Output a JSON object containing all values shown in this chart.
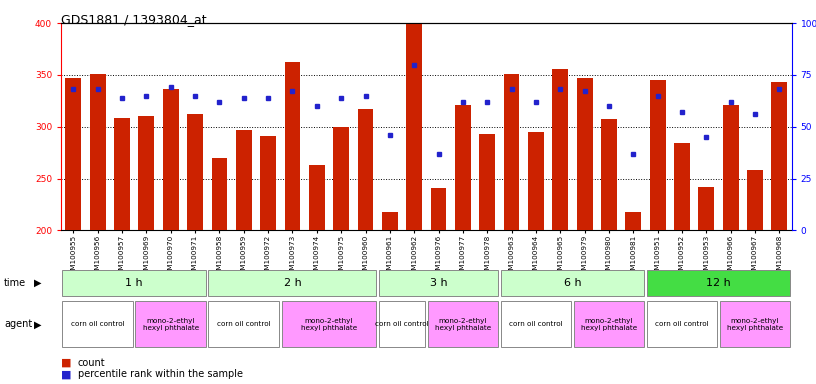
{
  "title": "GDS1881 / 1393804_at",
  "samples": [
    "GSM100955",
    "GSM100956",
    "GSM100957",
    "GSM100969",
    "GSM100970",
    "GSM100971",
    "GSM100958",
    "GSM100959",
    "GSM100972",
    "GSM100973",
    "GSM100974",
    "GSM100975",
    "GSM100960",
    "GSM100961",
    "GSM100962",
    "GSM100976",
    "GSM100977",
    "GSM100978",
    "GSM100963",
    "GSM100964",
    "GSM100965",
    "GSM100979",
    "GSM100980",
    "GSM100981",
    "GSM100951",
    "GSM100952",
    "GSM100953",
    "GSM100966",
    "GSM100967",
    "GSM100968"
  ],
  "counts": [
    347,
    351,
    308,
    310,
    336,
    312,
    270,
    297,
    291,
    362,
    263,
    300,
    317,
    218,
    400,
    241,
    321,
    293,
    351,
    295,
    356,
    347,
    307,
    218,
    345,
    284,
    242,
    321,
    258,
    343
  ],
  "percentiles": [
    68,
    68,
    64,
    65,
    69,
    65,
    62,
    64,
    64,
    67,
    60,
    64,
    65,
    46,
    80,
    37,
    62,
    62,
    68,
    62,
    68,
    67,
    60,
    37,
    65,
    57,
    45,
    62,
    56,
    68
  ],
  "time_groups": [
    {
      "label": "1 h",
      "start": 0,
      "end": 6
    },
    {
      "label": "2 h",
      "start": 6,
      "end": 13
    },
    {
      "label": "3 h",
      "start": 13,
      "end": 18
    },
    {
      "label": "6 h",
      "start": 18,
      "end": 24
    },
    {
      "label": "12 h",
      "start": 24,
      "end": 30
    }
  ],
  "time_colors": [
    "#ccffcc",
    "#ccffcc",
    "#ccffcc",
    "#ccffcc",
    "#44dd44"
  ],
  "agent_groups": [
    {
      "label": "corn oil control",
      "start": 0,
      "end": 3
    },
    {
      "label": "mono-2-ethyl\nhexyl phthalate",
      "start": 3,
      "end": 6
    },
    {
      "label": "corn oil control",
      "start": 6,
      "end": 9
    },
    {
      "label": "mono-2-ethyl\nhexyl phthalate",
      "start": 9,
      "end": 13
    },
    {
      "label": "corn oil control",
      "start": 13,
      "end": 15
    },
    {
      "label": "mono-2-ethyl\nhexyl phthalate",
      "start": 15,
      "end": 18
    },
    {
      "label": "corn oil control",
      "start": 18,
      "end": 21
    },
    {
      "label": "mono-2-ethyl\nhexyl phthalate",
      "start": 21,
      "end": 24
    },
    {
      "label": "corn oil control",
      "start": 24,
      "end": 27
    },
    {
      "label": "mono-2-ethyl\nhexyl phthalate",
      "start": 27,
      "end": 30
    }
  ],
  "agent_colors": [
    "#ffffff",
    "#ff99ff",
    "#ffffff",
    "#ff99ff",
    "#ffffff",
    "#ff99ff",
    "#ffffff",
    "#ff99ff",
    "#ffffff",
    "#ff99ff"
  ],
  "ymin": 200,
  "ymax": 400,
  "bar_color": "#cc2200",
  "dot_color": "#2222cc",
  "bar_width": 0.65
}
